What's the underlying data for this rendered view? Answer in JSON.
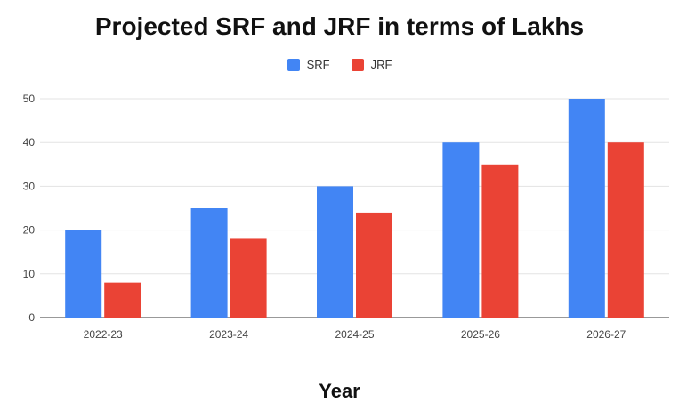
{
  "chart_data": {
    "type": "bar",
    "title": "Projected SRF and JRF in terms of Lakhs",
    "xlabel": "Year",
    "ylabel": "",
    "categories": [
      "2022-23",
      "2023-24",
      "2024-25",
      "2025-26",
      "2026-27"
    ],
    "series": [
      {
        "name": "SRF",
        "color": "#4285F4",
        "values": [
          20,
          25,
          30,
          40,
          50
        ]
      },
      {
        "name": "JRF",
        "color": "#EA4335",
        "values": [
          8,
          18,
          24,
          35,
          40
        ]
      }
    ],
    "ylim": [
      0,
      50
    ],
    "yticks": [
      "0",
      "10",
      "20",
      "30",
      "40",
      "50"
    ],
    "grid": true,
    "legend": "top-center"
  }
}
